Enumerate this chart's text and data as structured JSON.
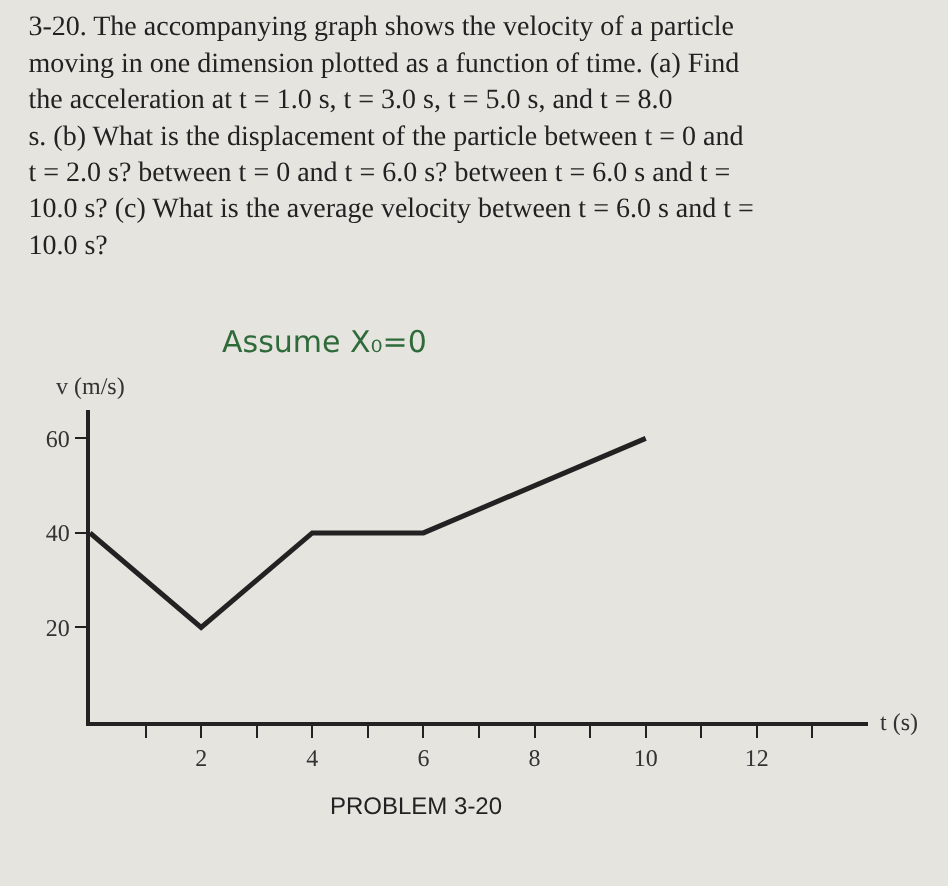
{
  "chart_data": {
    "type": "line",
    "title": "3-20. The accompanying graph shows the velocity of a particle moving in one dimension plotted as a function of time. (a) Find the acceleration at t = 1.0 s, t = 3.0 s, t = 5.0 s, and t = 8.0 s. (b) What is the displacement of the particle between t = 0 and t = 2.0 s? between t = 0 and t = 6.0 s? between t = 6.0 s and t = 10.0 s? (c) What is the average velocity between t = 6.0 s and t = 10.0 s?",
    "xlabel": "t (s)",
    "ylabel": "v (m/s)",
    "annotations": [
      "Assume X₀=0",
      "PROBLEM 3-20"
    ],
    "x": [
      0,
      2,
      4,
      6,
      10
    ],
    "series": [
      {
        "color": "#222222",
        "values": [
          40,
          20,
          40,
          40,
          60
        ]
      }
    ],
    "xlim": [
      0,
      14
    ],
    "ylim": [
      0,
      66
    ],
    "xticks": [
      {
        "value": 1,
        "label": null
      },
      2,
      {
        "value": 3,
        "label": null
      },
      4,
      {
        "value": 5,
        "label": null
      },
      6,
      {
        "value": 7,
        "label": null
      },
      8,
      {
        "value": 9,
        "label": null
      },
      10,
      {
        "value": 11,
        "label": null
      },
      12,
      {
        "value": 13,
        "label": null
      }
    ],
    "yticks": [
      20,
      40,
      60
    ],
    "grid": false,
    "marker": "none",
    "line_style": "solid"
  }
}
